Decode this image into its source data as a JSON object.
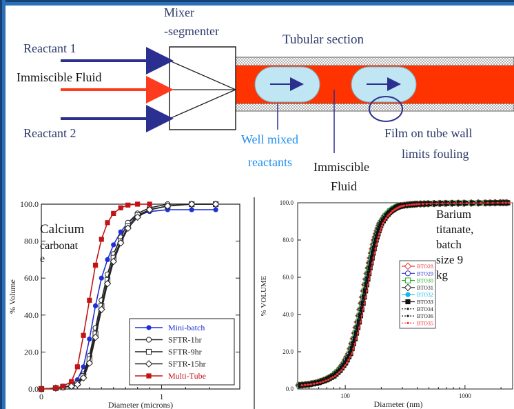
{
  "diagram": {
    "mixer_label_line1": "Mixer",
    "mixer_label_line2": "-segmenter",
    "tubular_label": "Tubular section",
    "reactant1": "Reactant 1",
    "immiscible_fluid": "Immiscible Fluid",
    "reactant2": "Reactant 2",
    "well_mixed_line1": "Well mixed",
    "well_mixed_line2": "reactants",
    "immiscible_line1": "Immiscible",
    "immiscible_line2": "Fluid",
    "film_line1": "Film on tube wall",
    "film_line2": "limits fouling",
    "colors": {
      "reactant_arrow": "#2b2f8f",
      "fluid_arrow": "#ff3b1f",
      "tube_fill": "#ff3300",
      "droplet": "#bfe6f2",
      "annotation_blue": "#1f8ff0"
    }
  },
  "chart_data": [
    {
      "type": "line",
      "annotation": "Calcium carbonate",
      "xlabel": "Diameter (microns)",
      "ylabel": "% Volume",
      "xlim": [
        0,
        1.65
      ],
      "ylim": [
        0,
        100
      ],
      "x_ticks": [
        "0",
        "1"
      ],
      "y_ticks": [
        "0.0",
        "20.0",
        "40.0",
        "60.0",
        "80.0",
        "100.0"
      ],
      "legend_position": "bottom-right",
      "series": [
        {
          "name": "Mini-batch",
          "color": "#1f2fd6",
          "marker": "filled-circle",
          "x": [
            0.0,
            0.12,
            0.18,
            0.25,
            0.3,
            0.35,
            0.4,
            0.45,
            0.5,
            0.55,
            0.6,
            0.66,
            0.72,
            0.8,
            0.9,
            1.05,
            1.25,
            1.45
          ],
          "y": [
            0,
            0.5,
            1,
            2,
            5,
            12,
            27,
            45,
            60,
            70,
            78,
            85,
            90,
            94,
            96,
            97,
            97,
            97
          ]
        },
        {
          "name": "SFTR-1hr",
          "color": "#222222",
          "marker": "open-circle",
          "x": [
            0.0,
            0.12,
            0.18,
            0.25,
            0.3,
            0.35,
            0.4,
            0.45,
            0.5,
            0.55,
            0.6,
            0.66,
            0.72,
            0.8,
            0.9,
            1.05,
            1.25,
            1.45
          ],
          "y": [
            0,
            0.5,
            1,
            1.5,
            3,
            8,
            18,
            33,
            48,
            62,
            73,
            82,
            90,
            95,
            98,
            100,
            100,
            100
          ]
        },
        {
          "name": "SFTR-9hr",
          "color": "#222222",
          "marker": "open-square",
          "x": [
            0.0,
            0.12,
            0.18,
            0.25,
            0.3,
            0.35,
            0.4,
            0.45,
            0.5,
            0.55,
            0.6,
            0.66,
            0.72,
            0.8,
            0.9,
            1.05,
            1.25,
            1.45
          ],
          "y": [
            0,
            0.5,
            1,
            1.5,
            3,
            7,
            16,
            30,
            45,
            59,
            71,
            80,
            88,
            94,
            97,
            99,
            100,
            100
          ]
        },
        {
          "name": "SFTR-15hr",
          "color": "#222222",
          "marker": "open-diamond",
          "x": [
            0.0,
            0.12,
            0.18,
            0.25,
            0.3,
            0.35,
            0.4,
            0.45,
            0.5,
            0.55,
            0.6,
            0.66,
            0.72,
            0.8,
            0.9,
            1.05,
            1.25,
            1.45
          ],
          "y": [
            0,
            0.5,
            1,
            1.5,
            2.5,
            6,
            14,
            28,
            43,
            57,
            69,
            79,
            87,
            93,
            97,
            99,
            100,
            100
          ]
        },
        {
          "name": "Multi-Tube",
          "color": "#c21414",
          "marker": "filled-square",
          "x": [
            0.0,
            0.12,
            0.18,
            0.25,
            0.3,
            0.35,
            0.4,
            0.45,
            0.5,
            0.55,
            0.6,
            0.66,
            0.72,
            0.8,
            0.9
          ],
          "y": [
            0,
            0.5,
            1.5,
            4,
            12,
            29,
            48,
            67,
            81,
            90,
            95,
            98,
            99.5,
            100,
            100
          ]
        }
      ]
    },
    {
      "type": "line",
      "annotation": "Barium titanate, batch size 9 kg",
      "xlabel": "Diameter (nm)",
      "ylabel": "% VOLUME",
      "x_scale": "log",
      "xlim": [
        40,
        2500
      ],
      "ylim": [
        0,
        100
      ],
      "x_ticks": [
        "100",
        "1000"
      ],
      "y_ticks": [
        "0.0",
        "20.0",
        "40.0",
        "60.0",
        "80.0",
        "100.0"
      ],
      "legend_position": "center-right",
      "series": [
        {
          "name": "BTO28",
          "color": "#e33",
          "marker": "open-diamond"
        },
        {
          "name": "BTO29",
          "color": "#33c",
          "marker": "open-circle"
        },
        {
          "name": "BTO30",
          "color": "#2a2",
          "marker": "open-square"
        },
        {
          "name": "BTO31",
          "color": "#222",
          "marker": "open-diamond"
        },
        {
          "name": "BTO32",
          "color": "#19b5f0",
          "marker": "filled-circle"
        },
        {
          "name": "BTO33",
          "color": "#111",
          "marker": "filled-square"
        },
        {
          "name": "BTO34",
          "color": "#111",
          "marker": "dot"
        },
        {
          "name": "BTO36",
          "color": "#111",
          "marker": "dot"
        },
        {
          "name": "BTO35",
          "color": "#e33",
          "marker": "dot"
        }
      ],
      "shared_curve": {
        "x": [
          42,
          50,
          60,
          70,
          80,
          90,
          100,
          110,
          120,
          130,
          140,
          150,
          160,
          170,
          180,
          190,
          200,
          220,
          240,
          260,
          280,
          300,
          350,
          400,
          500,
          700,
          1000,
          1500,
          2000,
          2400
        ],
        "y": [
          2,
          2.5,
          3.5,
          5,
          7,
          10,
          14,
          19,
          27,
          36,
          46,
          56,
          65,
          73,
          80,
          85,
          89,
          93,
          95.5,
          97,
          98,
          98.5,
          99,
          99.3,
          99.5,
          99.7,
          99.8,
          99.9,
          100,
          100
        ]
      }
    }
  ]
}
